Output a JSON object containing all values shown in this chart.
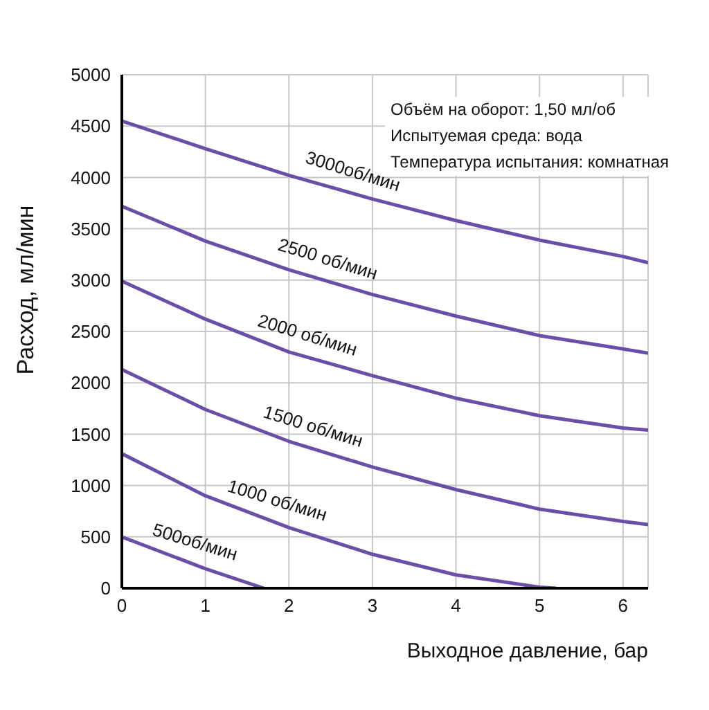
{
  "chart_data": {
    "type": "line",
    "xlabel": "Выходное давление, бар",
    "ylabel": "Расход, мл/мин",
    "xlim": [
      0,
      6.3
    ],
    "xticks": [
      0,
      1,
      2,
      3,
      4,
      5,
      6
    ],
    "ylim": [
      0,
      5000
    ],
    "yticks": [
      0,
      500,
      1000,
      1500,
      2000,
      2500,
      3000,
      3500,
      4000,
      4500,
      5000
    ],
    "grid": true,
    "legend": false,
    "marker": "none",
    "line_style": "solid",
    "series": [
      {
        "name": "3000об/мин",
        "color": "#6a4fa8",
        "x": [
          0,
          1,
          2,
          3,
          4,
          5,
          6,
          6.3
        ],
        "values": [
          4550,
          4280,
          4020,
          3790,
          3580,
          3390,
          3230,
          3170
        ]
      },
      {
        "name": "2500 об/мин",
        "color": "#6a4fa8",
        "x": [
          0,
          1,
          2,
          3,
          4,
          5,
          6,
          6.3
        ],
        "values": [
          3720,
          3380,
          3100,
          2860,
          2650,
          2460,
          2330,
          2290
        ]
      },
      {
        "name": "2000 об/мин",
        "color": "#6a4fa8",
        "x": [
          0,
          1,
          2,
          3,
          4,
          5,
          6,
          6.3
        ],
        "values": [
          2990,
          2620,
          2300,
          2070,
          1850,
          1680,
          1560,
          1540
        ]
      },
      {
        "name": "1500 об/мин",
        "color": "#6a4fa8",
        "x": [
          0,
          1,
          2,
          3,
          4,
          5,
          6,
          6.3
        ],
        "values": [
          2130,
          1740,
          1430,
          1180,
          960,
          770,
          650,
          620
        ]
      },
      {
        "name": "1000 об/мин",
        "color": "#6a4fa8",
        "x": [
          0,
          1,
          2,
          3,
          4,
          5,
          5.2
        ],
        "values": [
          1310,
          900,
          590,
          330,
          130,
          10,
          0
        ]
      },
      {
        "name": "500об/мин",
        "color": "#6a4fa8",
        "x": [
          0,
          1,
          1.7
        ],
        "values": [
          500,
          190,
          0
        ]
      }
    ],
    "annotations": [
      "Объём на оборот: 1,50 мл/об",
      "Испытуемая среда: вода",
      "Температура испытания: комнатная"
    ]
  }
}
